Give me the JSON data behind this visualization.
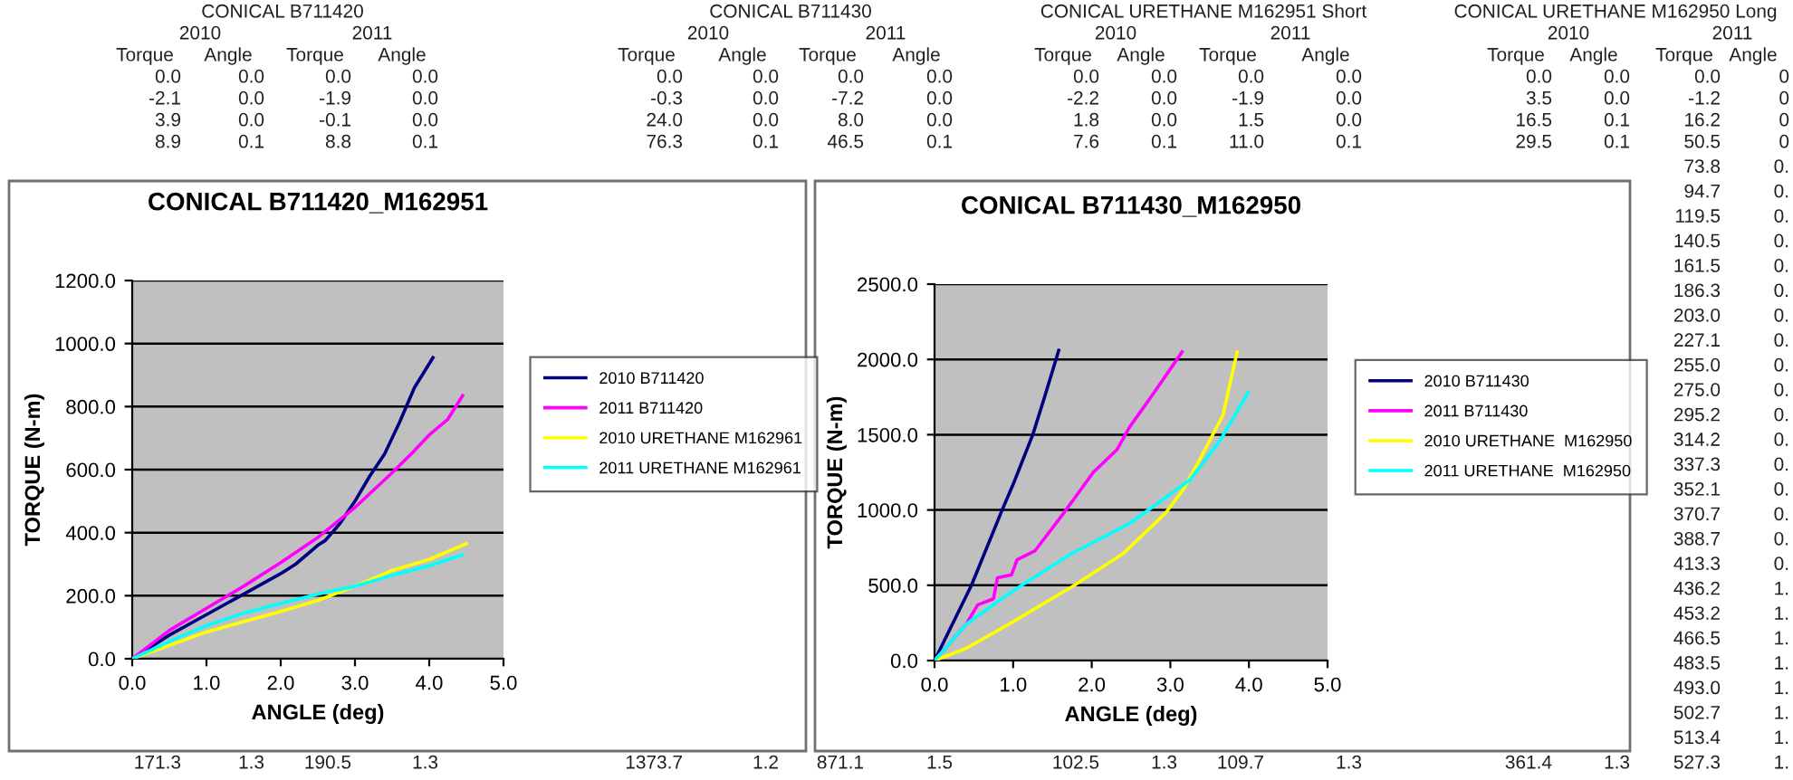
{
  "chart_data": [
    {
      "type": "line",
      "title": "CONICAL B711420_M162951",
      "xlabel": "ANGLE (deg)",
      "ylabel": "TORQUE (N-m)",
      "xlim": [
        0,
        5
      ],
      "xticks": [
        {
          "value": 0,
          "label": "0.0"
        },
        {
          "value": 1,
          "label": "1.0"
        },
        {
          "value": 2,
          "label": "2.0"
        },
        {
          "value": 3,
          "label": "3.0"
        },
        {
          "value": 4,
          "label": "4.0"
        },
        {
          "value": 5,
          "label": "5.0"
        }
      ],
      "ylim": [
        0,
        1200
      ],
      "yticks": [
        {
          "value": 0,
          "label": "0.0"
        },
        {
          "value": 200,
          "label": "200.0"
        },
        {
          "value": 400,
          "label": "400.0"
        },
        {
          "value": 600,
          "label": "600.0"
        },
        {
          "value": 800,
          "label": "800.0"
        },
        {
          "value": 1000,
          "label": "1000.0"
        },
        {
          "value": 1200,
          "label": "1200.0"
        }
      ],
      "grid": "y",
      "legend": "right",
      "series": [
        {
          "name": "2010 B711420",
          "color": "#000080",
          "x": [
            0,
            0.5,
            1.0,
            1.5,
            2.0,
            2.2,
            2.5,
            2.6,
            2.8,
            3.0,
            3.2,
            3.4,
            3.6,
            3.8,
            4.05
          ],
          "values": [
            0,
            75,
            140,
            205,
            270,
            300,
            360,
            375,
            430,
            500,
            580,
            650,
            750,
            860,
            955
          ]
        },
        {
          "name": "2011 B711420",
          "color": "#ff00ff",
          "x": [
            0,
            0.5,
            1.0,
            1.5,
            2.0,
            2.5,
            3.0,
            3.5,
            3.8,
            4.0,
            4.25,
            4.45
          ],
          "values": [
            0,
            90,
            160,
            230,
            305,
            385,
            480,
            590,
            660,
            710,
            760,
            835
          ]
        },
        {
          "name": "2010 URETHANE M162961",
          "color": "#ffff00",
          "x": [
            0,
            1.0,
            2.0,
            2.5,
            3.0,
            3.5,
            4.0,
            4.5
          ],
          "values": [
            0,
            85,
            150,
            185,
            230,
            280,
            315,
            365
          ]
        },
        {
          "name": "2011 URETHANE M162961",
          "color": "#00ffff",
          "x": [
            0,
            0.5,
            1.0,
            1.5,
            2.0,
            2.5,
            3.0,
            3.5,
            4.0,
            4.45
          ],
          "values": [
            0,
            55,
            105,
            145,
            175,
            205,
            230,
            265,
            295,
            330
          ]
        }
      ]
    },
    {
      "type": "line",
      "title": "CONICAL B711430_M162950",
      "xlabel": "ANGLE (deg)",
      "ylabel": "TORQUE (N-m)",
      "xlim": [
        0,
        5
      ],
      "xticks": [
        {
          "value": 0,
          "label": "0.0"
        },
        {
          "value": 1,
          "label": "1.0"
        },
        {
          "value": 2,
          "label": "2.0"
        },
        {
          "value": 3,
          "label": "3.0"
        },
        {
          "value": 4,
          "label": "4.0"
        },
        {
          "value": 5,
          "label": "5.0"
        }
      ],
      "ylim": [
        0,
        2500
      ],
      "yticks": [
        {
          "value": 0,
          "label": "0.0"
        },
        {
          "value": 500,
          "label": "500.0"
        },
        {
          "value": 1000,
          "label": "1000.0"
        },
        {
          "value": 1500,
          "label": "1500.0"
        },
        {
          "value": 2000,
          "label": "2000.0"
        },
        {
          "value": 2500,
          "label": "2500.0"
        }
      ],
      "grid": "y",
      "legend": "right",
      "series": [
        {
          "name": "2010 B711430",
          "color": "#000080",
          "x": [
            0,
            0.47,
            0.86,
            1.0,
            1.25,
            1.4,
            1.58
          ],
          "values": [
            0,
            500,
            1000,
            1170,
            1500,
            1750,
            2060
          ]
        },
        {
          "name": "2011 B711430",
          "color": "#ff00ff",
          "x": [
            0,
            0.4,
            0.55,
            0.75,
            0.8,
            0.98,
            1.05,
            1.28,
            1.63,
            2.02,
            2.32,
            2.48,
            2.78,
            3.15
          ],
          "values": [
            0,
            240,
            370,
            410,
            550,
            570,
            670,
            730,
            970,
            1250,
            1400,
            1550,
            1770,
            2050
          ]
        },
        {
          "name": "2010 URETHANE  M162950",
          "color": "#ffff00",
          "x": [
            0,
            0.4,
            0.94,
            1.78,
            2.4,
            2.94,
            3.17,
            3.4,
            3.67,
            3.85
          ],
          "values": [
            0,
            80,
            240,
            500,
            710,
            980,
            1140,
            1360,
            1630,
            2050
          ]
        },
        {
          "name": "2011 URETHANE  M162950",
          "color": "#00ffff",
          "x": [
            0,
            0.4,
            1.02,
            1.71,
            2.48,
            3.25,
            3.63,
            3.99
          ],
          "values": [
            0,
            240,
            470,
            700,
            910,
            1200,
            1460,
            1780
          ]
        }
      ]
    },
    {
      "type": "other",
      "annotations": [
        "CONICAL B711420",
        "CONICAL B711430",
        "CONICAL URETHANE M162951 Short",
        "CONICAL URETHANE M162950 Long",
        "2010",
        "2011",
        "2010",
        "2011",
        "2010",
        "2011",
        "2010",
        "2011",
        "Torque",
        "Angle",
        "Torque",
        "Angle",
        "Torque",
        "Angle",
        "Torque",
        "Angle",
        "Torque",
        "Angle",
        "Torque",
        "Angle",
        "Torque",
        "Angle",
        "Torque",
        "Angle",
        "0.0",
        "0.0",
        "0.0",
        "0.0",
        "0.0",
        "0.0",
        "0.0",
        "0.0",
        "0.0",
        "0.0",
        "0.0",
        "0.0",
        "0.0",
        "0.0",
        "0.0",
        "0",
        "-2.1",
        "0.0",
        "-1.9",
        "0.0",
        "-0.3",
        "0.0",
        "-7.2",
        "0.0",
        "-2.2",
        "0.0",
        "-1.9",
        "0.0",
        "3.5",
        "0.0",
        "-1.2",
        "0",
        "3.9",
        "0.0",
        "-0.1",
        "0.0",
        "24.0",
        "0.0",
        "8.0",
        "0.0",
        "1.8",
        "0.0",
        "1.5",
        "0.0",
        "16.5",
        "0.1",
        "16.2",
        "0",
        "8.9",
        "0.1",
        "8.8",
        "0.1",
        "76.3",
        "0.1",
        "46.5",
        "0.1",
        "7.6",
        "0.1",
        "11.0",
        "0.1",
        "29.5",
        "0.1",
        "50.5",
        "0",
        "73.8",
        "0.",
        "94.7",
        "0.",
        "119.5",
        "0.",
        "140.5",
        "0.",
        "161.5",
        "0.",
        "186.3",
        "0.",
        "203.0",
        "0.",
        "227.1",
        "0.",
        "255.0",
        "0.",
        "275.0",
        "0.",
        "295.2",
        "0.",
        "314.2",
        "0.",
        "337.3",
        "0.",
        "352.1",
        "0.",
        "370.7",
        "0.",
        "388.7",
        "0.",
        "413.3",
        "0.",
        "436.2",
        "1.",
        "453.2",
        "1.",
        "466.5",
        "1.",
        "483.5",
        "1.",
        "493.0",
        "1.",
        "502.7",
        "1.",
        "513.4",
        "1.",
        "171.3",
        "1.3",
        "190.5",
        "1.3",
        "1373.7",
        "1.2",
        "871.1",
        "1.5",
        "102.5",
        "1.3",
        "109.7",
        "1.3",
        "361.4",
        "1.3",
        "527.3",
        "1."
      ]
    }
  ]
}
